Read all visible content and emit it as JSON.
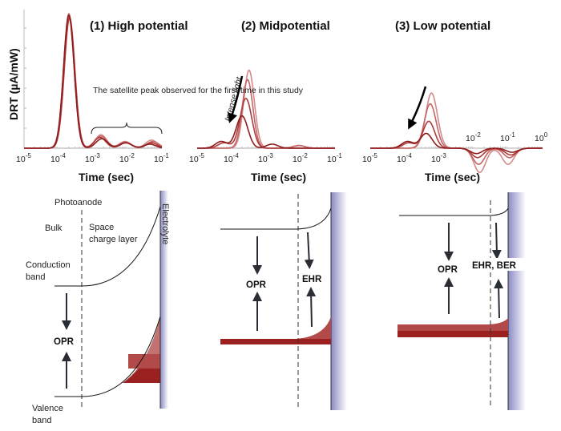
{
  "chart_data": [
    {
      "type": "line",
      "title": "(1) High potential",
      "xlabel": "Time (sec)",
      "ylabel": "DRT (µA/mW)",
      "xscale": "log",
      "xlim": [
        1e-05,
        0.1
      ],
      "tick_base": "10",
      "tick_exponents": [
        "-5",
        "-4",
        "-3",
        "-2",
        "-1"
      ],
      "annotation": "The satellite peak observed for the first time in this study",
      "series": [
        {
          "peaks": [
            {
              "time": 0.0002,
              "height": 1.0
            },
            {
              "time": 0.0017,
              "height": 0.1
            },
            {
              "time": 0.0085,
              "height": 0.05
            },
            {
              "time": 0.05,
              "height": 0.06
            }
          ]
        },
        {
          "peaks": [
            {
              "time": 0.0002,
              "height": 0.98
            },
            {
              "time": 0.0017,
              "height": 0.09
            },
            {
              "time": 0.0085,
              "height": 0.045
            },
            {
              "time": 0.055,
              "height": 0.05
            }
          ]
        },
        {
          "peaks": [
            {
              "time": 0.00021,
              "height": 0.97
            },
            {
              "time": 0.0016,
              "height": 0.08
            },
            {
              "time": 0.009,
              "height": 0.04
            },
            {
              "time": 0.05,
              "height": 0.04
            }
          ]
        },
        {
          "peaks": [
            {
              "time": 0.0002,
              "height": 0.99
            },
            {
              "time": 0.0018,
              "height": 0.07
            },
            {
              "time": 0.009,
              "height": 0.04
            },
            {
              "time": 0.045,
              "height": 0.03
            }
          ]
        }
      ]
    },
    {
      "type": "line",
      "title": "(2) Midpotential",
      "xlabel": "Time (sec)",
      "xscale": "log",
      "xlim": [
        1e-05,
        0.1
      ],
      "tick_base": "10",
      "tick_exponents": [
        "-5",
        "-4",
        "-3",
        "-2",
        "-1"
      ],
      "annotation": "Intense light",
      "series": [
        {
          "peaks": [
            {
              "time": 0.00032,
              "height": 0.58
            },
            {
              "time": 0.009,
              "height": 0.02
            }
          ]
        },
        {
          "peaks": [
            {
              "time": 0.00029,
              "height": 0.51
            },
            {
              "time": 0.009,
              "height": 0.02
            }
          ]
        },
        {
          "peaks": [
            {
              "time": 0.00026,
              "height": 0.37
            },
            {
              "time": 6e-05,
              "height": 0.04
            }
          ]
        },
        {
          "peaks": [
            {
              "time": 0.0002,
              "height": 0.24
            },
            {
              "time": 5e-05,
              "height": 0.05
            },
            {
              "time": 0.0015,
              "height": 0.03
            }
          ]
        }
      ]
    },
    {
      "type": "line",
      "title": "(3) Low potential",
      "xlabel": "Time (sec)",
      "xscale": "log",
      "xlim": [
        1e-05,
        1.0
      ],
      "tick_base": "10",
      "tick_exponents": [
        "-5",
        "-4",
        "-3",
        "-2",
        "-1",
        "0"
      ],
      "series": [
        {
          "peaks": [
            {
              "time": 0.0006,
              "height": 0.41
            },
            {
              "time": 0.015,
              "height": -0.18
            },
            {
              "time": 0.1,
              "height": -0.12
            }
          ]
        },
        {
          "peaks": [
            {
              "time": 0.00055,
              "height": 0.33
            },
            {
              "time": 0.014,
              "height": -0.12
            },
            {
              "time": 0.11,
              "height": -0.07
            }
          ]
        },
        {
          "peaks": [
            {
              "time": 0.0005,
              "height": 0.2
            },
            {
              "time": 0.00013,
              "height": 0.04
            },
            {
              "time": 0.013,
              "height": -0.07
            },
            {
              "time": 0.12,
              "height": -0.05
            }
          ]
        },
        {
          "peaks": [
            {
              "time": 0.00042,
              "height": 0.11
            },
            {
              "time": 0.00012,
              "height": 0.05
            },
            {
              "time": 0.012,
              "height": -0.04
            },
            {
              "time": 0.13,
              "height": -0.03
            }
          ]
        }
      ]
    }
  ],
  "series_colors": [
    "#d48a8a",
    "#c46464",
    "#ad3b3b",
    "#8e1c1c"
  ],
  "diagrams": {
    "high": {
      "photoanode": "Photoanode",
      "bulk": "Bulk",
      "space_charge_1": "Space",
      "space_charge_2": "charge layer",
      "electrolyte": "Electrolyte",
      "conduction_1": "Conduction",
      "conduction_2": "band",
      "valence_1": "Valence",
      "valence_2": "band",
      "opr": "OPR"
    },
    "mid": {
      "opr": "OPR",
      "ehr": "EHR"
    },
    "low": {
      "opr": "OPR",
      "ehr_ber": "EHR, BER"
    }
  },
  "colors": {
    "electrolyte": "#8a8ac4",
    "hole_dark": "#9b2020",
    "hole_mid": "#b24a4a",
    "hole_light": "#c27272"
  }
}
